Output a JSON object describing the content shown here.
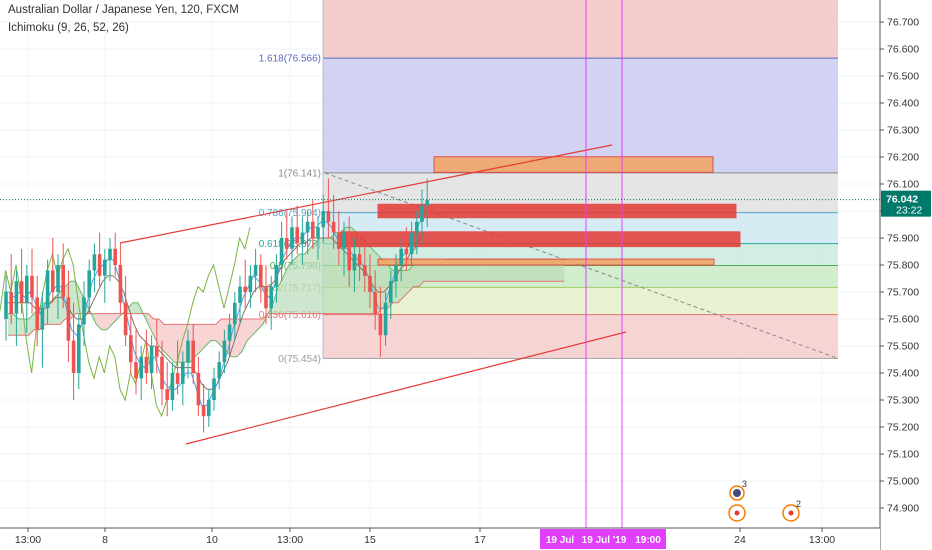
{
  "header": {
    "symbol_line": "Australian Dollar / Japanese Yen, 120, FXCM",
    "indicator_line": "Ichimoku (9, 26, 52, 26)"
  },
  "price_axis": {
    "current_price": "76.042",
    "countdown": "23:22"
  },
  "time_axis": {
    "highlight_label": "19 Jul '19   19:00",
    "highlight_labels": [
      "19 Jul",
      "19 Jul '19",
      "19:00"
    ]
  },
  "event_markers": [
    {
      "kind": "flag",
      "count": "3"
    },
    {
      "kind": "dot",
      "count": ""
    },
    {
      "kind": "dot",
      "count": "2"
    }
  ],
  "colors": {
    "up_candle": "#26a69a",
    "down_candle": "#ef5350",
    "trend_line": "#e53935",
    "highlight_line": "#e040fb",
    "current_price_badge": "#00796b",
    "cloud_bull": "#b9dcb8",
    "cloud_bear": "#f6c2c2"
  },
  "chart_data": {
    "type": "candlestick",
    "symbol": "AUDJPY",
    "interval": "120",
    "ylim": [
      74.85,
      76.78
    ],
    "y_ticks": [
      "74.900",
      "75.000",
      "75.100",
      "75.200",
      "75.300",
      "75.400",
      "75.500",
      "75.600",
      "75.700",
      "75.800",
      "75.900",
      "76.000",
      "76.100",
      "76.200",
      "76.300",
      "76.400",
      "76.500",
      "76.600",
      "76.700"
    ],
    "x_ticks": [
      "13:00",
      "8",
      "10",
      "13:00",
      "15",
      "17",
      "24",
      "13:00"
    ],
    "fib_levels": [
      {
        "ratio": "0",
        "price": 75.454,
        "label": "0(75.454)",
        "color": "#9e9e9e"
      },
      {
        "ratio": "0.236",
        "price": 75.616,
        "label": "0.236(75.616)",
        "color": "#e57373"
      },
      {
        "ratio": "0.382",
        "price": 75.717,
        "label": "0.382(75.717)",
        "color": "#9ccc65"
      },
      {
        "ratio": "0.5",
        "price": 75.798,
        "label": "0.5(75.798)",
        "color": "#4caf50"
      },
      {
        "ratio": "0.618",
        "price": 75.879,
        "label": "0.618(75.879)",
        "color": "#26a69a"
      },
      {
        "ratio": "0.786",
        "price": 75.994,
        "label": "0.786(75.994)",
        "color": "#4fa3c7"
      },
      {
        "ratio": "1",
        "price": 76.141,
        "label": "1(76.141)",
        "color": "#8a8a8a"
      },
      {
        "ratio": "1.618",
        "price": 76.566,
        "label": "1.618(76.566)",
        "color": "#5c6bc0"
      }
    ],
    "zones": [
      {
        "name": "orange-upper",
        "from": 76.143,
        "to": 76.201,
        "color": "#f4a460"
      },
      {
        "name": "red-upper",
        "from": 75.975,
        "to": 76.025,
        "color": "#e53935"
      },
      {
        "name": "red-middle",
        "from": 75.868,
        "to": 75.923,
        "color": "#e53935"
      },
      {
        "name": "orange-lower",
        "from": 75.8,
        "to": 75.822,
        "color": "#f4a460"
      }
    ],
    "candles": [
      {
        "o": 75.6,
        "h": 75.76,
        "l": 75.52,
        "c": 75.7
      },
      {
        "o": 75.7,
        "h": 75.84,
        "l": 75.58,
        "c": 75.62
      },
      {
        "o": 75.62,
        "h": 75.78,
        "l": 75.5,
        "c": 75.74
      },
      {
        "o": 75.74,
        "h": 75.86,
        "l": 75.62,
        "c": 75.66
      },
      {
        "o": 75.66,
        "h": 75.8,
        "l": 75.55,
        "c": 75.76
      },
      {
        "o": 75.76,
        "h": 75.86,
        "l": 75.62,
        "c": 75.68
      },
      {
        "o": 75.68,
        "h": 75.76,
        "l": 75.5,
        "c": 75.56
      },
      {
        "o": 75.56,
        "h": 75.7,
        "l": 75.42,
        "c": 75.64
      },
      {
        "o": 75.64,
        "h": 75.82,
        "l": 75.58,
        "c": 75.78
      },
      {
        "o": 75.78,
        "h": 75.9,
        "l": 75.66,
        "c": 75.7
      },
      {
        "o": 75.7,
        "h": 75.84,
        "l": 75.6,
        "c": 75.8
      },
      {
        "o": 75.8,
        "h": 75.88,
        "l": 75.64,
        "c": 75.68
      },
      {
        "o": 75.68,
        "h": 75.78,
        "l": 75.44,
        "c": 75.52
      },
      {
        "o": 75.52,
        "h": 75.66,
        "l": 75.3,
        "c": 75.4
      },
      {
        "o": 75.4,
        "h": 75.62,
        "l": 75.34,
        "c": 75.58
      },
      {
        "o": 75.58,
        "h": 75.74,
        "l": 75.5,
        "c": 75.68
      },
      {
        "o": 75.68,
        "h": 75.82,
        "l": 75.62,
        "c": 75.78
      },
      {
        "o": 75.78,
        "h": 75.88,
        "l": 75.7,
        "c": 75.84
      },
      {
        "o": 75.84,
        "h": 75.92,
        "l": 75.72,
        "c": 75.76
      },
      {
        "o": 75.76,
        "h": 75.86,
        "l": 75.66,
        "c": 75.82
      },
      {
        "o": 75.82,
        "h": 75.9,
        "l": 75.74,
        "c": 75.86
      },
      {
        "o": 75.86,
        "h": 75.92,
        "l": 75.76,
        "c": 75.8
      },
      {
        "o": 75.8,
        "h": 75.88,
        "l": 75.62,
        "c": 75.66
      },
      {
        "o": 75.66,
        "h": 75.76,
        "l": 75.5,
        "c": 75.54
      },
      {
        "o": 75.54,
        "h": 75.62,
        "l": 75.4,
        "c": 75.44
      },
      {
        "o": 75.44,
        "h": 75.56,
        "l": 75.32,
        "c": 75.38
      },
      {
        "o": 75.38,
        "h": 75.5,
        "l": 75.3,
        "c": 75.46
      },
      {
        "o": 75.46,
        "h": 75.56,
        "l": 75.36,
        "c": 75.4
      },
      {
        "o": 75.4,
        "h": 75.54,
        "l": 75.34,
        "c": 75.5
      },
      {
        "o": 75.5,
        "h": 75.6,
        "l": 75.4,
        "c": 75.46
      },
      {
        "o": 75.46,
        "h": 75.52,
        "l": 75.28,
        "c": 75.34
      },
      {
        "o": 75.34,
        "h": 75.44,
        "l": 75.24,
        "c": 75.3
      },
      {
        "o": 75.3,
        "h": 75.44,
        "l": 75.26,
        "c": 75.4
      },
      {
        "o": 75.4,
        "h": 75.52,
        "l": 75.32,
        "c": 75.36
      },
      {
        "o": 75.36,
        "h": 75.48,
        "l": 75.28,
        "c": 75.44
      },
      {
        "o": 75.44,
        "h": 75.56,
        "l": 75.38,
        "c": 75.52
      },
      {
        "o": 75.52,
        "h": 75.58,
        "l": 75.36,
        "c": 75.4
      },
      {
        "o": 75.4,
        "h": 75.46,
        "l": 75.24,
        "c": 75.28
      },
      {
        "o": 75.28,
        "h": 75.36,
        "l": 75.18,
        "c": 75.24
      },
      {
        "o": 75.24,
        "h": 75.34,
        "l": 75.2,
        "c": 75.3
      },
      {
        "o": 75.3,
        "h": 75.42,
        "l": 75.26,
        "c": 75.38
      },
      {
        "o": 75.38,
        "h": 75.48,
        "l": 75.34,
        "c": 75.44
      },
      {
        "o": 75.44,
        "h": 75.56,
        "l": 75.4,
        "c": 75.52
      },
      {
        "o": 75.52,
        "h": 75.62,
        "l": 75.46,
        "c": 75.58
      },
      {
        "o": 75.58,
        "h": 75.7,
        "l": 75.52,
        "c": 75.66
      },
      {
        "o": 75.66,
        "h": 75.76,
        "l": 75.58,
        "c": 75.72
      },
      {
        "o": 75.72,
        "h": 75.82,
        "l": 75.64,
        "c": 75.7
      },
      {
        "o": 75.7,
        "h": 75.8,
        "l": 75.64,
        "c": 75.76
      },
      {
        "o": 75.76,
        "h": 75.86,
        "l": 75.7,
        "c": 75.8
      },
      {
        "o": 75.8,
        "h": 75.84,
        "l": 75.66,
        "c": 75.72
      },
      {
        "o": 75.72,
        "h": 75.8,
        "l": 75.58,
        "c": 75.64
      },
      {
        "o": 75.64,
        "h": 75.76,
        "l": 75.56,
        "c": 75.72
      },
      {
        "o": 75.72,
        "h": 75.84,
        "l": 75.66,
        "c": 75.8
      },
      {
        "o": 75.8,
        "h": 75.96,
        "l": 75.74,
        "c": 75.9
      },
      {
        "o": 75.9,
        "h": 76.0,
        "l": 75.82,
        "c": 75.86
      },
      {
        "o": 75.86,
        "h": 75.98,
        "l": 75.8,
        "c": 75.94
      },
      {
        "o": 75.94,
        "h": 76.02,
        "l": 75.84,
        "c": 75.88
      },
      {
        "o": 75.88,
        "h": 75.98,
        "l": 75.8,
        "c": 75.92
      },
      {
        "o": 75.92,
        "h": 76.0,
        "l": 75.84,
        "c": 75.96
      },
      {
        "o": 75.96,
        "h": 76.04,
        "l": 75.86,
        "c": 75.9
      },
      {
        "o": 75.9,
        "h": 75.98,
        "l": 75.82,
        "c": 75.94
      },
      {
        "o": 75.94,
        "h": 76.06,
        "l": 75.88,
        "c": 76.0
      },
      {
        "o": 76.0,
        "h": 76.12,
        "l": 75.9,
        "c": 75.96
      },
      {
        "o": 75.96,
        "h": 76.06,
        "l": 75.86,
        "c": 75.92
      },
      {
        "o": 75.92,
        "h": 76.0,
        "l": 75.8,
        "c": 75.86
      },
      {
        "o": 75.86,
        "h": 75.96,
        "l": 75.76,
        "c": 75.92
      },
      {
        "o": 75.92,
        "h": 75.98,
        "l": 75.72,
        "c": 75.78
      },
      {
        "o": 75.78,
        "h": 75.9,
        "l": 75.7,
        "c": 75.84
      },
      {
        "o": 75.84,
        "h": 75.92,
        "l": 75.74,
        "c": 75.8
      },
      {
        "o": 75.8,
        "h": 75.88,
        "l": 75.7,
        "c": 75.76
      },
      {
        "o": 75.76,
        "h": 75.84,
        "l": 75.64,
        "c": 75.7
      },
      {
        "o": 75.7,
        "h": 75.78,
        "l": 75.56,
        "c": 75.62
      },
      {
        "o": 75.62,
        "h": 75.72,
        "l": 75.46,
        "c": 75.54
      },
      {
        "o": 75.54,
        "h": 75.7,
        "l": 75.5,
        "c": 75.66
      },
      {
        "o": 75.66,
        "h": 75.78,
        "l": 75.6,
        "c": 75.74
      },
      {
        "o": 75.74,
        "h": 75.84,
        "l": 75.68,
        "c": 75.8
      },
      {
        "o": 75.8,
        "h": 75.9,
        "l": 75.74,
        "c": 75.86
      },
      {
        "o": 75.86,
        "h": 75.94,
        "l": 75.78,
        "c": 75.84
      },
      {
        "o": 75.84,
        "h": 75.96,
        "l": 75.8,
        "c": 75.92
      },
      {
        "o": 75.92,
        "h": 76.0,
        "l": 75.84,
        "c": 75.96
      },
      {
        "o": 75.96,
        "h": 76.08,
        "l": 75.88,
        "c": 76.02
      },
      {
        "o": 76.02,
        "h": 76.12,
        "l": 75.94,
        "c": 76.04
      }
    ],
    "conversion_line": [
      75.7,
      75.7,
      75.68,
      75.7,
      75.68,
      75.7,
      75.66,
      75.62,
      75.66,
      75.7,
      75.72,
      75.72,
      75.64,
      75.56,
      75.54,
      75.58,
      75.66,
      75.74,
      75.78,
      75.8,
      75.82,
      75.82,
      75.76,
      75.66,
      75.58,
      75.48,
      75.44,
      75.42,
      75.44,
      75.46,
      75.4,
      75.36,
      75.34,
      75.34,
      75.36,
      75.4,
      75.4,
      75.34,
      75.28,
      75.28,
      75.32,
      75.36,
      75.42,
      75.48,
      75.56,
      75.62,
      75.68,
      75.72,
      75.76,
      75.74,
      75.7,
      75.68,
      75.72,
      75.8,
      75.84,
      75.88,
      75.9,
      75.9,
      75.92,
      75.94,
      75.94,
      75.96,
      75.96,
      75.94,
      75.9,
      75.88,
      75.86,
      75.84,
      75.82,
      75.8,
      75.76,
      75.7,
      75.64,
      75.64,
      75.7,
      75.76,
      75.82,
      75.84,
      75.88,
      75.92,
      75.96,
      76.0
    ],
    "base_line": [
      75.66,
      75.66,
      75.66,
      75.66,
      75.66,
      75.66,
      75.64,
      75.64,
      75.64,
      75.66,
      75.68,
      75.68,
      75.66,
      75.62,
      75.6,
      75.6,
      75.62,
      75.66,
      75.7,
      75.74,
      75.76,
      75.76,
      75.74,
      75.7,
      75.64,
      75.58,
      75.54,
      75.52,
      75.5,
      75.5,
      75.48,
      75.46,
      75.44,
      75.42,
      75.42,
      75.42,
      75.42,
      75.4,
      75.36,
      75.34,
      75.34,
      75.36,
      75.4,
      75.44,
      75.5,
      75.56,
      75.62,
      75.66,
      75.7,
      75.72,
      75.72,
      75.72,
      75.74,
      75.78,
      75.82,
      75.84,
      75.86,
      75.88,
      75.88,
      75.9,
      75.9,
      75.9,
      75.9,
      75.9,
      75.88,
      75.86,
      75.84,
      75.82,
      75.8,
      75.78,
      75.76,
      75.72,
      75.7,
      75.7,
      75.72,
      75.74,
      75.78,
      75.8,
      75.84,
      75.86,
      75.9,
      75.92
    ],
    "lagging_span": [
      75.7,
      75.62,
      75.74,
      75.66,
      75.76,
      75.68,
      75.56,
      75.64,
      75.78,
      75.7,
      75.8,
      75.68,
      75.52,
      75.4,
      75.58,
      75.68,
      75.78,
      75.84,
      75.76,
      75.82,
      75.86,
      75.8,
      75.66,
      75.54,
      75.44,
      75.38,
      75.46,
      75.4,
      75.5,
      75.46,
      75.34,
      75.3,
      75.4,
      75.36,
      75.44,
      75.52,
      75.4,
      75.28,
      75.24,
      75.3,
      75.38,
      75.44,
      75.52,
      75.58,
      75.66,
      75.72,
      75.7,
      75.76,
      75.8,
      75.72,
      75.64,
      75.72,
      75.8,
      75.9,
      75.86,
      75.94
    ],
    "cloud": {
      "span_a": [
        75.62,
        75.62,
        75.6,
        75.6,
        75.6,
        75.62,
        75.64,
        75.66,
        75.66,
        75.68,
        75.7,
        75.72,
        75.74,
        75.74,
        75.7,
        75.66,
        75.62,
        75.58,
        75.56,
        75.56,
        75.58,
        75.6,
        75.62,
        75.64,
        75.66,
        75.66,
        75.62,
        75.58,
        75.54,
        75.5,
        75.48,
        75.46,
        75.44,
        75.44,
        75.44,
        75.44,
        75.46,
        75.48,
        75.5,
        75.52,
        75.52,
        75.5,
        75.48,
        75.46,
        75.46,
        75.48,
        75.52,
        75.54,
        75.56,
        75.58,
        75.62,
        75.66,
        75.72,
        75.76,
        75.8,
        75.82,
        75.84,
        75.84,
        75.86,
        75.88,
        75.9,
        75.9,
        75.9,
        75.92,
        75.92,
        75.94,
        75.94,
        75.92,
        75.9,
        75.88,
        75.86,
        75.84,
        75.82,
        75.8,
        75.78,
        75.78,
        75.78,
        75.78,
        75.8,
        75.8,
        75.8,
        75.8,
        75.8,
        75.8,
        75.82,
        75.82,
        75.82,
        75.82,
        75.82,
        75.82,
        75.82,
        75.82,
        75.82,
        75.82,
        75.82,
        75.82,
        75.82,
        75.82,
        75.82,
        75.82,
        75.82,
        75.82,
        75.82,
        75.82,
        75.82,
        75.82,
        75.82,
        75.82
      ],
      "span_b": [
        75.54,
        75.54,
        75.54,
        75.54,
        75.54,
        75.56,
        75.56,
        75.58,
        75.58,
        75.58,
        75.58,
        75.6,
        75.6,
        75.62,
        75.62,
        75.62,
        75.62,
        75.62,
        75.62,
        75.62,
        75.62,
        75.62,
        75.62,
        75.62,
        75.62,
        75.62,
        75.62,
        75.62,
        75.6,
        75.6,
        75.58,
        75.58,
        75.58,
        75.58,
        75.58,
        75.58,
        75.58,
        75.58,
        75.58,
        75.58,
        75.58,
        75.6,
        75.6,
        75.6,
        75.6,
        75.6,
        75.6,
        75.6,
        75.6,
        75.6,
        75.62,
        75.62,
        75.62,
        75.62,
        75.62,
        75.62,
        75.62,
        75.62,
        75.62,
        75.62,
        75.62,
        75.62,
        75.62,
        75.62,
        75.62,
        75.62,
        75.62,
        75.62,
        75.62,
        75.62,
        75.62,
        75.62,
        75.64,
        75.64,
        75.66,
        75.66,
        75.68,
        75.7,
        75.72,
        75.72,
        75.74,
        75.74,
        75.74,
        75.74,
        75.74,
        75.74,
        75.74,
        75.74,
        75.74,
        75.74,
        75.74,
        75.74,
        75.74,
        75.74,
        75.74,
        75.74,
        75.74,
        75.74,
        75.74,
        75.74,
        75.74,
        75.74,
        75.74,
        75.74,
        75.74,
        75.74,
        75.74,
        75.74
      ]
    }
  }
}
